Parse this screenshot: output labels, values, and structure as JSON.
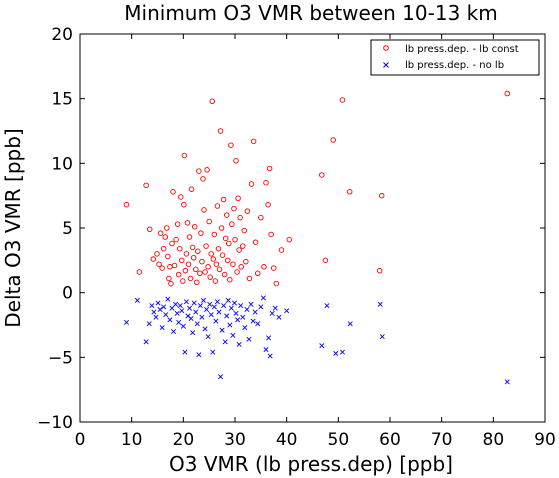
{
  "chart_data": {
    "type": "scatter",
    "title": "Minimum O3 VMR between 10-13 km",
    "xlabel": "O3 VMR (lb press.dep) [ppb]",
    "ylabel": "Delta O3 VMR [ppb]",
    "xlim": [
      0,
      90
    ],
    "ylim": [
      -10,
      20
    ],
    "xticks": [
      0,
      10,
      20,
      30,
      40,
      50,
      60,
      70,
      80,
      90
    ],
    "yticks": [
      -10,
      -5,
      0,
      5,
      10,
      15,
      20
    ],
    "legend": "top-right",
    "grid": false,
    "series": [
      {
        "name": "lb press.dep. - lb const",
        "marker": "circle",
        "color": "#ff0000",
        "points": [
          [
            9,
            6.8
          ],
          [
            11.5,
            1.6
          ],
          [
            12.8,
            8.3
          ],
          [
            13.5,
            4.9
          ],
          [
            14.2,
            2.6
          ],
          [
            14.9,
            3.0
          ],
          [
            15.3,
            2.2
          ],
          [
            15.6,
            4.6
          ],
          [
            15.9,
            1.9
          ],
          [
            16.2,
            3.4
          ],
          [
            16.5,
            4.3
          ],
          [
            16.8,
            5.0
          ],
          [
            17.0,
            2.8
          ],
          [
            17.2,
            1.1
          ],
          [
            17.4,
            2.0
          ],
          [
            17.6,
            0.7
          ],
          [
            17.8,
            3.8
          ],
          [
            18.0,
            7.8
          ],
          [
            18.3,
            2.1
          ],
          [
            18.6,
            4.1
          ],
          [
            18.9,
            5.3
          ],
          [
            19.1,
            1.4
          ],
          [
            19.3,
            3.4
          ],
          [
            19.5,
            7.4
          ],
          [
            19.7,
            2.5
          ],
          [
            19.9,
            0.9
          ],
          [
            20.1,
            6.8
          ],
          [
            20.2,
            10.6
          ],
          [
            20.4,
            1.7
          ],
          [
            20.6,
            3.0
          ],
          [
            20.8,
            5.4
          ],
          [
            21.0,
            2.2
          ],
          [
            21.2,
            4.3
          ],
          [
            21.4,
            1.1
          ],
          [
            21.6,
            8.0
          ],
          [
            21.8,
            3.5
          ],
          [
            22.0,
            2.7
          ],
          [
            22.2,
            5.1
          ],
          [
            22.4,
            1.8
          ],
          [
            22.6,
            0.8
          ],
          [
            22.8,
            3.2
          ],
          [
            23.0,
            9.4
          ],
          [
            23.2,
            1.5
          ],
          [
            23.4,
            4.6
          ],
          [
            23.6,
            2.4
          ],
          [
            23.8,
            8.8
          ],
          [
            24.0,
            6.4
          ],
          [
            24.2,
            1.6
          ],
          [
            24.4,
            3.6
          ],
          [
            24.6,
            9.5
          ],
          [
            24.8,
            2.0
          ],
          [
            25.0,
            5.5
          ],
          [
            25.2,
            1.2
          ],
          [
            25.4,
            3.0
          ],
          [
            25.6,
            14.8
          ],
          [
            25.8,
            2.6
          ],
          [
            26.0,
            4.5
          ],
          [
            26.2,
            0.9
          ],
          [
            26.4,
            2.2
          ],
          [
            26.6,
            6.7
          ],
          [
            26.8,
            3.4
          ],
          [
            27.0,
            1.8
          ],
          [
            27.2,
            12.5
          ],
          [
            27.4,
            5.0
          ],
          [
            27.6,
            2.9
          ],
          [
            27.8,
            7.2
          ],
          [
            28.0,
            1.4
          ],
          [
            28.2,
            4.2
          ],
          [
            28.4,
            6.0
          ],
          [
            28.6,
            2.5
          ],
          [
            28.8,
            3.8
          ],
          [
            29.0,
            1.0
          ],
          [
            29.2,
            11.4
          ],
          [
            29.4,
            5.3
          ],
          [
            29.6,
            2.2
          ],
          [
            29.8,
            6.5
          ],
          [
            30.0,
            4.1
          ],
          [
            30.2,
            10.2
          ],
          [
            30.4,
            1.6
          ],
          [
            30.6,
            7.3
          ],
          [
            30.8,
            3.3
          ],
          [
            31.0,
            5.8
          ],
          [
            31.2,
            2.0
          ],
          [
            31.5,
            3.6
          ],
          [
            31.8,
            4.8
          ],
          [
            32.1,
            2.4
          ],
          [
            32.4,
            6.3
          ],
          [
            32.8,
            1.1
          ],
          [
            33.2,
            8.4
          ],
          [
            33.6,
            11.7
          ],
          [
            34.0,
            3.9
          ],
          [
            34.4,
            1.5
          ],
          [
            35.0,
            5.8
          ],
          [
            35.6,
            2.0
          ],
          [
            36.0,
            8.5
          ],
          [
            36.4,
            6.8
          ],
          [
            36.7,
            9.6
          ],
          [
            37.0,
            4.5
          ],
          [
            37.5,
            1.9
          ],
          [
            38.0,
            0.7
          ],
          [
            39.0,
            3.3
          ],
          [
            40.5,
            4.1
          ],
          [
            46.8,
            9.1
          ],
          [
            47.5,
            2.5
          ],
          [
            49.0,
            11.8
          ],
          [
            50.8,
            14.9
          ],
          [
            52.2,
            7.8
          ],
          [
            58.0,
            1.7
          ],
          [
            58.4,
            7.5
          ],
          [
            82.7,
            15.4
          ]
        ]
      },
      {
        "name": "lb press.dep. - no lb",
        "marker": "x",
        "color": "#0000ff",
        "points": [
          [
            9,
            -2.3
          ],
          [
            11.1,
            -0.6
          ],
          [
            12.8,
            -3.8
          ],
          [
            13.4,
            -2.4
          ],
          [
            13.9,
            -1.0
          ],
          [
            14.3,
            -1.5
          ],
          [
            14.7,
            -1.9
          ],
          [
            15.1,
            -0.8
          ],
          [
            15.5,
            -1.3
          ],
          [
            15.9,
            -2.7
          ],
          [
            16.2,
            -1.1
          ],
          [
            16.6,
            -1.7
          ],
          [
            17.0,
            -0.5
          ],
          [
            17.4,
            -2.1
          ],
          [
            17.8,
            -1.2
          ],
          [
            18.1,
            -3.0
          ],
          [
            18.5,
            -0.9
          ],
          [
            18.8,
            -1.6
          ],
          [
            19.1,
            -2.3
          ],
          [
            19.4,
            -1.0
          ],
          [
            19.7,
            -1.4
          ],
          [
            20.0,
            -2.6
          ],
          [
            20.3,
            -4.6
          ],
          [
            20.6,
            -0.7
          ],
          [
            20.9,
            -1.8
          ],
          [
            21.2,
            -1.2
          ],
          [
            21.5,
            -2.0
          ],
          [
            21.8,
            -3.1
          ],
          [
            22.1,
            -0.8
          ],
          [
            22.4,
            -1.5
          ],
          [
            22.7,
            -2.4
          ],
          [
            23.0,
            -4.8
          ],
          [
            23.3,
            -1.0
          ],
          [
            23.6,
            -1.9
          ],
          [
            23.9,
            -0.6
          ],
          [
            24.2,
            -2.8
          ],
          [
            24.5,
            -1.3
          ],
          [
            24.8,
            -3.4
          ],
          [
            25.1,
            -0.9
          ],
          [
            25.4,
            -1.7
          ],
          [
            25.7,
            -4.6
          ],
          [
            26.0,
            -1.1
          ],
          [
            26.3,
            -2.2
          ],
          [
            26.6,
            -0.7
          ],
          [
            26.9,
            -1.5
          ],
          [
            27.2,
            -6.5
          ],
          [
            27.5,
            -2.9
          ],
          [
            27.8,
            -1.0
          ],
          [
            28.1,
            -3.8
          ],
          [
            28.4,
            -1.8
          ],
          [
            28.7,
            -0.6
          ],
          [
            29.0,
            -2.5
          ],
          [
            29.3,
            -1.2
          ],
          [
            29.6,
            -3.3
          ],
          [
            29.9,
            -0.8
          ],
          [
            30.2,
            -1.6
          ],
          [
            30.5,
            -2.1
          ],
          [
            30.8,
            -4.0
          ],
          [
            31.1,
            -1.0
          ],
          [
            31.5,
            -1.9
          ],
          [
            31.9,
            -2.7
          ],
          [
            32.3,
            -1.3
          ],
          [
            32.7,
            -3.6
          ],
          [
            33.1,
            -0.9
          ],
          [
            33.5,
            -2.2
          ],
          [
            33.9,
            -1.5
          ],
          [
            34.4,
            -2.4
          ],
          [
            35.0,
            -1.1
          ],
          [
            35.5,
            -0.4
          ],
          [
            36.0,
            -4.4
          ],
          [
            36.5,
            -3.5
          ],
          [
            36.8,
            -4.9
          ],
          [
            37.2,
            -1.6
          ],
          [
            37.8,
            -1.2
          ],
          [
            38.5,
            -1.9
          ],
          [
            40.0,
            -1.4
          ],
          [
            46.8,
            -4.1
          ],
          [
            47.8,
            -1.0
          ],
          [
            49.5,
            -4.7
          ],
          [
            50.8,
            -4.6
          ],
          [
            52.3,
            -2.4
          ],
          [
            58.1,
            -0.9
          ],
          [
            58.5,
            -3.4
          ],
          [
            82.7,
            -6.9
          ]
        ]
      }
    ]
  }
}
